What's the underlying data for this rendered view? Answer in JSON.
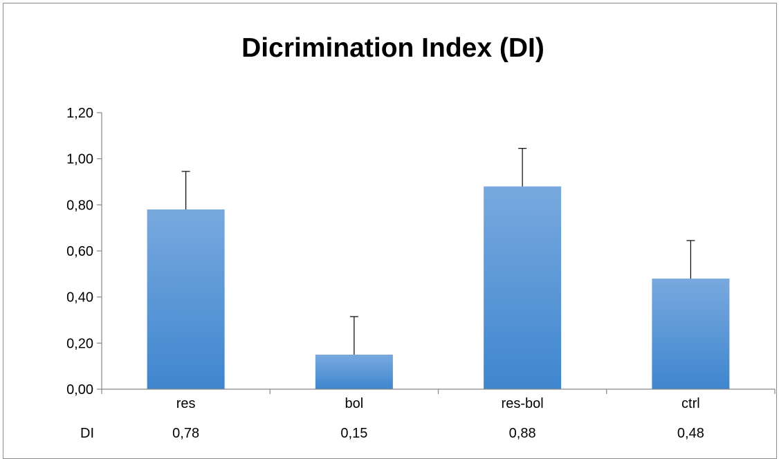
{
  "chart_data": {
    "type": "bar",
    "title": "Dicrimination Index (DI)",
    "categories": [
      "res",
      "bol",
      "res-bol",
      "ctrl"
    ],
    "series": [
      {
        "name": "DI",
        "values": [
          0.78,
          0.15,
          0.88,
          0.48
        ],
        "value_labels": [
          "0,78",
          "0,15",
          "0,88",
          "0,48"
        ],
        "error_plus": [
          0.165,
          0.165,
          0.165,
          0.165
        ]
      }
    ],
    "ylim": [
      0,
      1.2
    ],
    "yticks": [
      0,
      0.2,
      0.4,
      0.6,
      0.8,
      1.0,
      1.2
    ],
    "ytick_labels": [
      "0,00",
      "0,20",
      "0,40",
      "0,60",
      "0,80",
      "1,00",
      "1,20"
    ],
    "grid": false,
    "data_table_label": "DI",
    "colors": {
      "bar_top": "#78a9de",
      "bar_bottom": "#3f86cf",
      "axis": "#868686",
      "error_bar": "#000000"
    }
  }
}
